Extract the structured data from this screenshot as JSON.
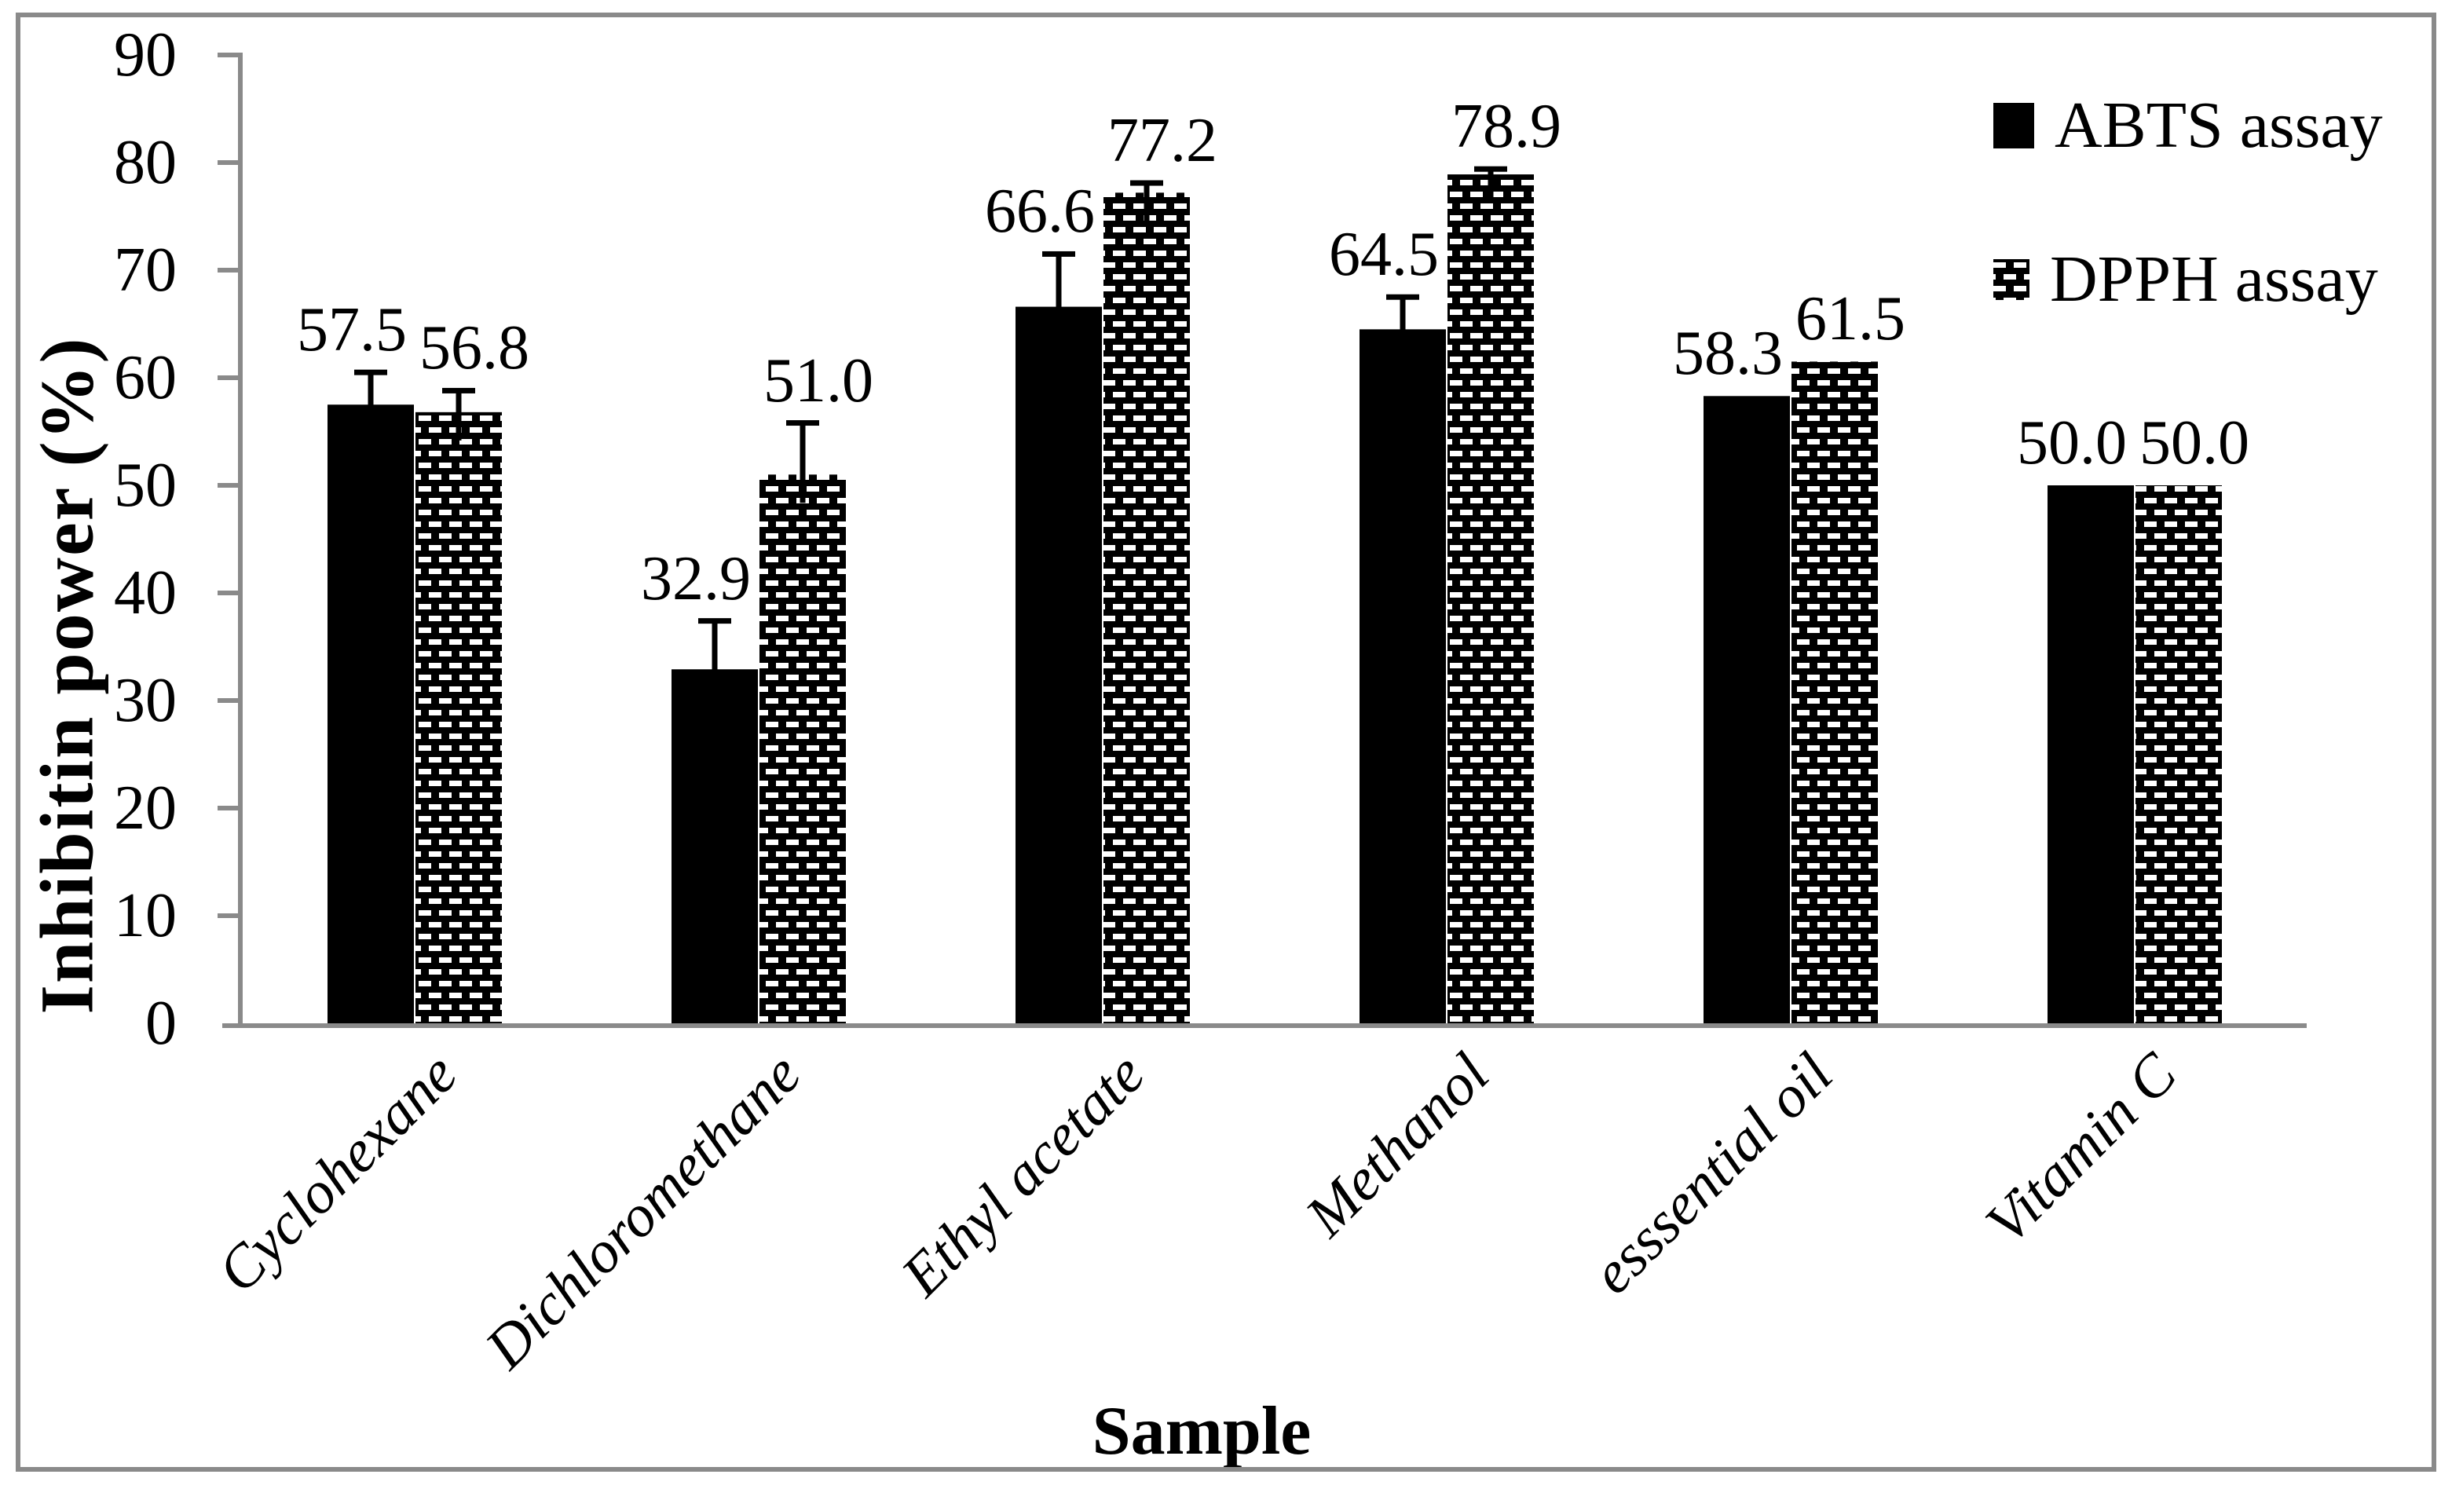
{
  "figure": {
    "background": "#ffffff",
    "border_color": "#8a8a8a",
    "bar_color": "#000000",
    "axis_color": "#8a8a8a"
  },
  "axes": {
    "y_title": "Inhibitin  power (%)",
    "x_title": "Sample"
  },
  "legend": {
    "position": "top-right",
    "items": [
      {
        "label": "ABTS assay",
        "marker": "solid-black-square"
      },
      {
        "label": "DPPH assay",
        "marker": "brick-pattern-square"
      }
    ]
  },
  "chart_data": {
    "type": "bar",
    "title": "",
    "xlabel": "Sample",
    "ylabel": "Inhibitin  power (%)",
    "ylim": [
      0,
      90
    ],
    "yticks": [
      0,
      10,
      20,
      30,
      40,
      50,
      60,
      70,
      80,
      90
    ],
    "grid": false,
    "legend_position": "upper right",
    "categories": [
      "Cyclohexane",
      "Dichloromethane",
      "Ethyl acetate",
      "Methanol",
      "esssential oil",
      "Vitamin C"
    ],
    "series": [
      {
        "name": "ABTS assay",
        "style": "solid-black",
        "values": [
          57.5,
          32.9,
          66.6,
          64.5,
          58.3,
          50.0
        ],
        "data_labels": [
          "57.5",
          "32.9",
          "66.6",
          "64.5",
          "58.3",
          "50.0"
        ],
        "error_upper": [
          3.0,
          4.5,
          4.9,
          3.0,
          0,
          0
        ]
      },
      {
        "name": "DPPH assay",
        "style": "white-brick-on-black",
        "values": [
          56.8,
          51.0,
          77.2,
          78.9,
          61.5,
          50.0
        ],
        "data_labels": [
          "56.8",
          "51.0",
          "77.2",
          "78.9",
          "61.5",
          "50.0"
        ],
        "error_upper": [
          2.0,
          4.8,
          0.9,
          0.5,
          0,
          0
        ]
      }
    ]
  }
}
